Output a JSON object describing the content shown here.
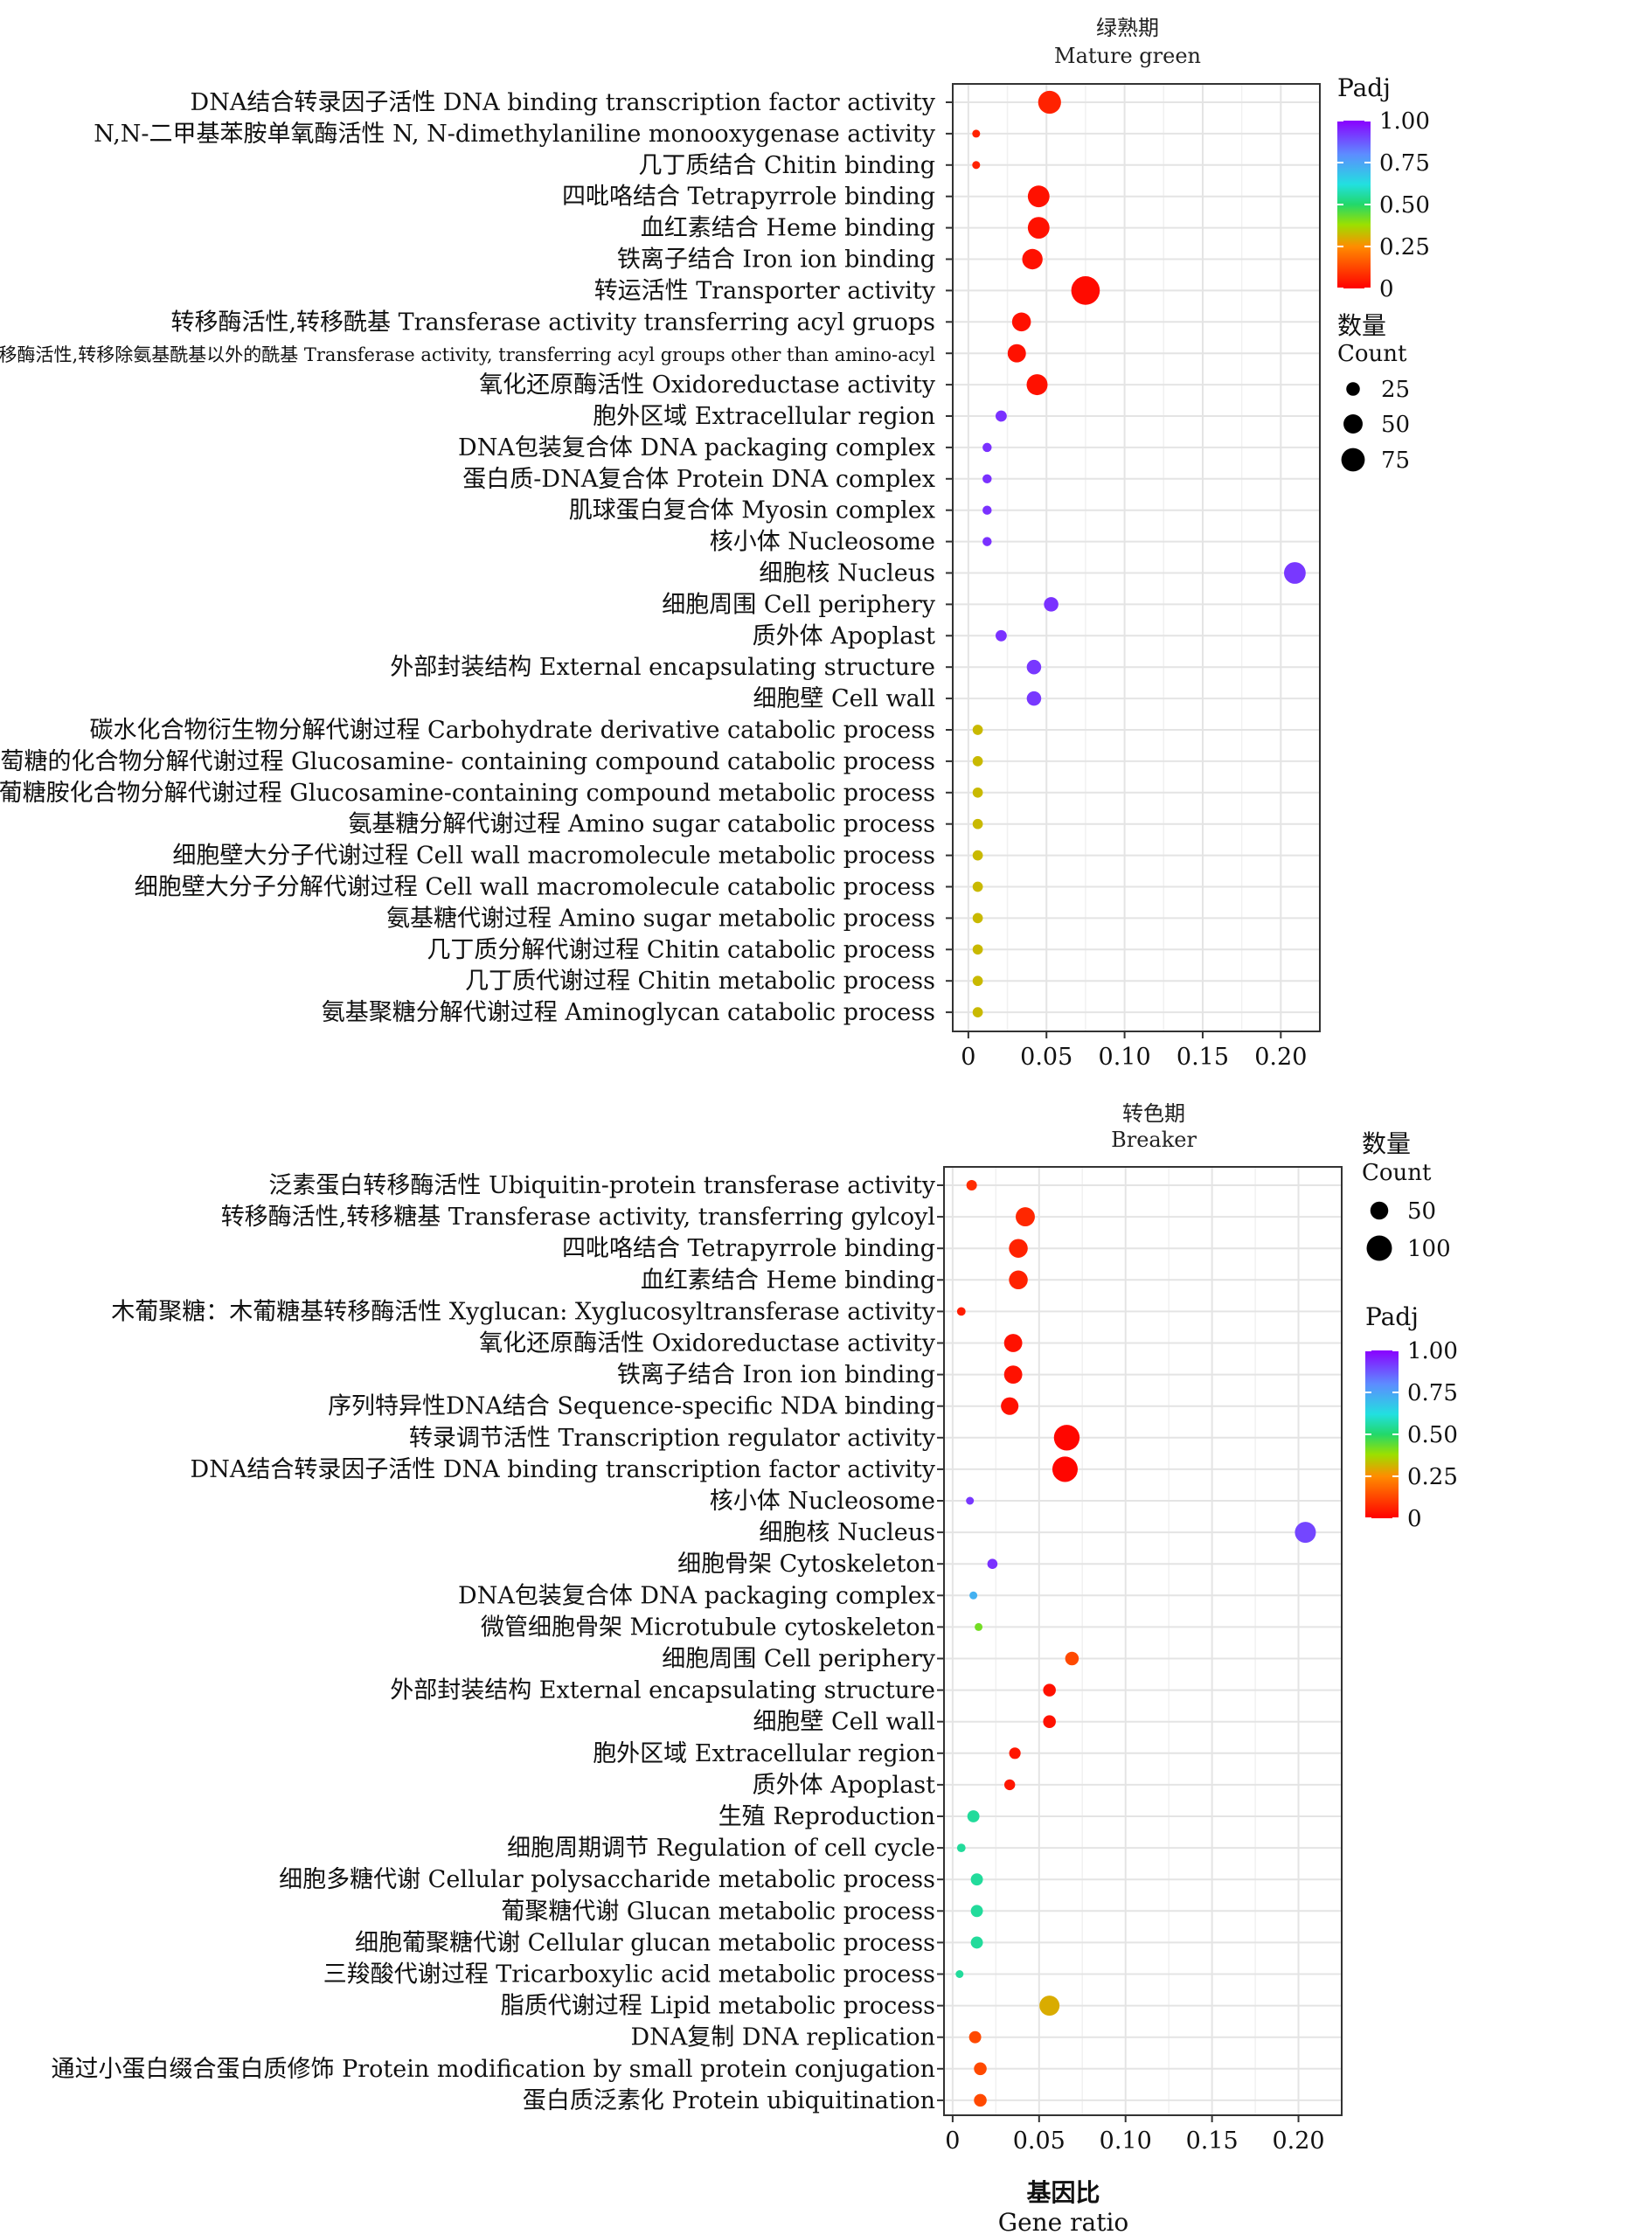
{
  "chart_data": [
    {
      "type": "scatter",
      "title": "绿熟期",
      "subtitle": "Mature green",
      "xlim": [
        -0.01,
        0.225
      ],
      "x_ticks": [
        "0",
        "0.05",
        "0.10",
        "0.15",
        "0.20"
      ],
      "x_tick_values": [
        0,
        0.05,
        0.1,
        0.15,
        0.2
      ],
      "grid": true,
      "size_legend": {
        "title_cn": "数量",
        "title_en": "Count",
        "values": [
          25,
          50,
          75
        ],
        "labels": [
          "25",
          "50",
          "75"
        ]
      },
      "color_legend": {
        "title": "Padj",
        "min": 0,
        "max": 1,
        "labels": [
          "1.00",
          "0.75",
          "0.50",
          "0.25",
          "0"
        ]
      },
      "points": [
        {
          "label": "DNA结合转录因子活性 DNA binding transcription factor activity",
          "x": 0.052,
          "count": 50,
          "padj": 0.06
        },
        {
          "label": "N,N-二甲基苯胺单氧酶活性 N, N-dimethylaniline monooxygenase activity",
          "x": 0.005,
          "count": 6,
          "padj": 0.06
        },
        {
          "label": "几丁质结合 Chitin binding",
          "x": 0.005,
          "count": 6,
          "padj": 0.06
        },
        {
          "label": "四吡咯结合 Tetrapyrrole binding",
          "x": 0.045,
          "count": 45,
          "padj": 0.03
        },
        {
          "label": "血红素结合 Heme binding",
          "x": 0.045,
          "count": 45,
          "padj": 0.03
        },
        {
          "label": "铁离子结合 Iron ion binding",
          "x": 0.041,
          "count": 40,
          "padj": 0.03
        },
        {
          "label": "转运活性 Transporter activity",
          "x": 0.075,
          "count": 78,
          "padj": 0.02
        },
        {
          "label": "转移酶活性,转移酰基 Transferase activity transferring acyl gruops",
          "x": 0.034,
          "count": 34,
          "padj": 0.03
        },
        {
          "label": "转移酶活性,转移除氨基酰基以外的酰基 Transferase activity, transferring acyl groups other than amino-acyl",
          "x": 0.031,
          "count": 32,
          "padj": 0.03
        },
        {
          "label": "氧化还原酶活性 Oxidoreductase activity",
          "x": 0.044,
          "count": 42,
          "padj": 0.03
        },
        {
          "label": "胞外区域 Extracellular region",
          "x": 0.021,
          "count": 12,
          "padj": 0.93
        },
        {
          "label": "DNA包装复合体 DNA packaging complex",
          "x": 0.012,
          "count": 8,
          "padj": 0.93
        },
        {
          "label": "蛋白质-DNA复合体 Protein DNA complex",
          "x": 0.012,
          "count": 8,
          "padj": 0.93
        },
        {
          "label": "肌球蛋白复合体 Myosin complex",
          "x": 0.012,
          "count": 8,
          "padj": 0.93
        },
        {
          "label": "核小体 Nucleosome",
          "x": 0.012,
          "count": 8,
          "padj": 0.93
        },
        {
          "label": "细胞核 Nucleus",
          "x": 0.209,
          "count": 45,
          "padj": 0.92
        },
        {
          "label": "细胞周围 Cell periphery",
          "x": 0.053,
          "count": 20,
          "padj": 0.93
        },
        {
          "label": "质外体 Apoplast",
          "x": 0.021,
          "count": 12,
          "padj": 0.93
        },
        {
          "label": "外部封装结构 External encapsulating structure",
          "x": 0.042,
          "count": 20,
          "padj": 0.92
        },
        {
          "label": "细胞壁 Cell wall",
          "x": 0.042,
          "count": 20,
          "padj": 0.92
        },
        {
          "label": "碳水化合物衍生物分解代谢过程 Carbohydrate derivative catabolic process",
          "x": 0.006,
          "count": 10,
          "padj": 0.32
        },
        {
          "label": "含氨基葡萄糖的化合物分解代谢过程 Glucosamine- containing compound catabolic process",
          "x": 0.006,
          "count": 10,
          "padj": 0.32
        },
        {
          "label": "含葡糖胺化合物分解代谢过程 Glucosamine-containing compound metabolic process",
          "x": 0.006,
          "count": 10,
          "padj": 0.32
        },
        {
          "label": "氨基糖分解代谢过程 Amino sugar catabolic process",
          "x": 0.006,
          "count": 10,
          "padj": 0.32
        },
        {
          "label": "细胞壁大分子代谢过程 Cell wall macromolecule  metabolic process",
          "x": 0.006,
          "count": 10,
          "padj": 0.32
        },
        {
          "label": "细胞壁大分子分解代谢过程 Cell wall macromolecule  catabolic process",
          "x": 0.006,
          "count": 10,
          "padj": 0.32
        },
        {
          "label": "氨基糖代谢过程 Amino sugar metabolic process",
          "x": 0.006,
          "count": 10,
          "padj": 0.32
        },
        {
          "label": "几丁质分解代谢过程 Chitin catabolic process",
          "x": 0.006,
          "count": 10,
          "padj": 0.32
        },
        {
          "label": "几丁质代谢过程 Chitin metabolic process",
          "x": 0.006,
          "count": 10,
          "padj": 0.32
        },
        {
          "label": "氨基聚糖分解代谢过程 Aminoglycan catabolic process",
          "x": 0.006,
          "count": 10,
          "padj": 0.32
        }
      ]
    },
    {
      "type": "scatter",
      "title": "转色期",
      "subtitle": "Breaker",
      "xlabel_cn": "基因比",
      "xlabel_en": "Gene ratio",
      "xlim": [
        -0.005,
        0.225
      ],
      "x_ticks": [
        "0",
        "0.05",
        "0.10",
        "0.15",
        "0.20"
      ],
      "x_tick_values": [
        0,
        0.05,
        0.1,
        0.15,
        0.2
      ],
      "grid": true,
      "size_legend": {
        "title_cn": "数量",
        "title_en": "Count",
        "values": [
          50,
          100
        ],
        "labels": [
          "50",
          "100"
        ]
      },
      "color_legend": {
        "title": "Padj",
        "min": 0,
        "max": 1,
        "labels": [
          "1.00",
          "0.75",
          "0.50",
          "0.25",
          "0"
        ]
      },
      "points": [
        {
          "label": "泛素蛋白转移酶活性 Ubiquitin-protein transferase activity",
          "x": 0.011,
          "count": 15,
          "padj": 0.08
        },
        {
          "label": "转移酶活性,转移糖基 Transferase activity, transferring gylcoyl",
          "x": 0.042,
          "count": 50,
          "padj": 0.07
        },
        {
          "label": "四吡咯结合 Tetrapyrrole binding",
          "x": 0.038,
          "count": 48,
          "padj": 0.06
        },
        {
          "label": "血红素结合 Heme binding",
          "x": 0.038,
          "count": 48,
          "padj": 0.06
        },
        {
          "label": "木葡聚糖：木葡糖基转移酶活性 Xyglucan: Xyglucosyltransferase activity",
          "x": 0.005,
          "count": 10,
          "padj": 0.05
        },
        {
          "label": "氧化还原酶活性 Oxidoreductase activity",
          "x": 0.035,
          "count": 45,
          "padj": 0.03
        },
        {
          "label": "铁离子结合 Iron ion binding",
          "x": 0.035,
          "count": 45,
          "padj": 0.03
        },
        {
          "label": "序列特异性DNA结合 Sequence-specific NDA binding",
          "x": 0.033,
          "count": 42,
          "padj": 0.03
        },
        {
          "label": "转录调节活性 Transcription regulator activity",
          "x": 0.066,
          "count": 90,
          "padj": 0.01
        },
        {
          "label": "DNA结合转录因子活性 DNA binding transcription factor activity",
          "x": 0.065,
          "count": 88,
          "padj": 0.01
        },
        {
          "label": "核小体 Nucleosome",
          "x": 0.01,
          "count": 6,
          "padj": 0.92
        },
        {
          "label": "细胞核 Nucleus",
          "x": 0.204,
          "count": 60,
          "padj": 0.9
        },
        {
          "label": "细胞骨架 Cytoskeleton",
          "x": 0.023,
          "count": 14,
          "padj": 0.93
        },
        {
          "label": "DNA包装复合体 DNA packaging complex",
          "x": 0.012,
          "count": 8,
          "padj": 0.72
        },
        {
          "label": "微管细胞骨架 Microtubule cytoskeleton",
          "x": 0.015,
          "count": 8,
          "padj": 0.42
        },
        {
          "label": "细胞周围 Cell periphery",
          "x": 0.069,
          "count": 25,
          "padj": 0.13
        },
        {
          "label": "外部封装结构 External encapsulating structure",
          "x": 0.056,
          "count": 22,
          "padj": 0.03
        },
        {
          "label": "细胞壁 Cell wall",
          "x": 0.056,
          "count": 22,
          "padj": 0.03
        },
        {
          "label": "胞外区域 Extracellular region",
          "x": 0.036,
          "count": 18,
          "padj": 0.04
        },
        {
          "label": "质外体 Apoplast",
          "x": 0.033,
          "count": 16,
          "padj": 0.04
        },
        {
          "label": "生殖 Reproduction",
          "x": 0.012,
          "count": 20,
          "padj": 0.55
        },
        {
          "label": "细胞周期调节 Regulation of cell cycle",
          "x": 0.005,
          "count": 10,
          "padj": 0.55
        },
        {
          "label": "细胞多糖代谢 Cellular polysaccharide metabolic process",
          "x": 0.014,
          "count": 20,
          "padj": 0.55
        },
        {
          "label": "葡聚糖代谢 Glucan metabolic process",
          "x": 0.014,
          "count": 20,
          "padj": 0.55
        },
        {
          "label": "细胞葡聚糖代谢 Cellular glucan metabolic process",
          "x": 0.014,
          "count": 20,
          "padj": 0.55
        },
        {
          "label": "三羧酸代谢过程 Tricarboxylic acid metabolic process",
          "x": 0.004,
          "count": 8,
          "padj": 0.55
        },
        {
          "label": "脂质代谢过程 Lipid metabolic process",
          "x": 0.056,
          "count": 55,
          "padj": 0.3
        },
        {
          "label": "DNA复制 DNA replication",
          "x": 0.013,
          "count": 20,
          "padj": 0.13
        },
        {
          "label": "通过小蛋白缀合蛋白质修饰 Protein modification by small protein conjugation",
          "x": 0.016,
          "count": 22,
          "padj": 0.13
        },
        {
          "label": "蛋白质泛素化 Protein ubiquitination",
          "x": 0.016,
          "count": 22,
          "padj": 0.13
        }
      ]
    }
  ]
}
